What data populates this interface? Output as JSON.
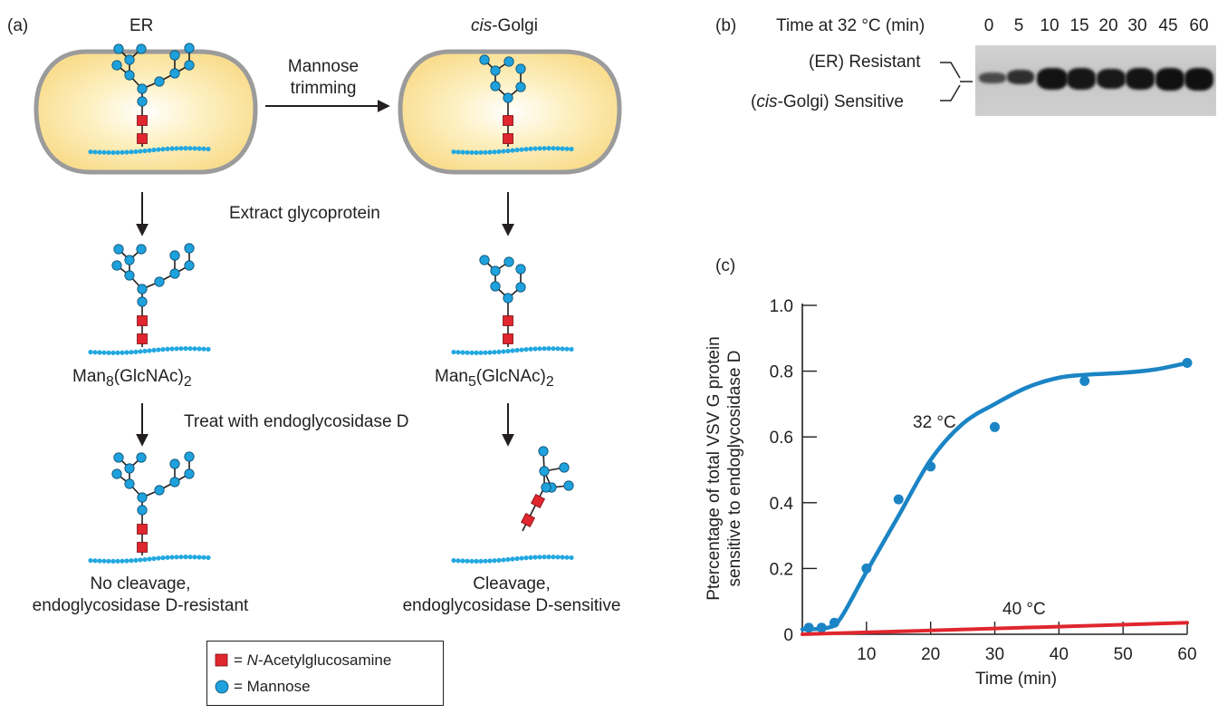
{
  "panel_a": {
    "letter": "(a)",
    "er_label": "ER",
    "golgi_label_italic": "cis",
    "golgi_label_rest": "-Golgi",
    "trim_line1": "Mannose",
    "trim_line2": "trimming",
    "extract_label": "Extract glycoprotein",
    "man8_prefix": "Man",
    "man8_sub": "8",
    "man8_mid": "(GlcNAc)",
    "man8_sub2": "2",
    "man5_prefix": "Man",
    "man5_sub": "5",
    "man5_mid": "(GlcNAc)",
    "man5_sub2": "2",
    "treat_label": "Treat with endoglycosidase D",
    "no_cleavage_line1": "No cleavage,",
    "no_cleavage_line2": "endoglycosidase D-resistant",
    "cleavage_line1": "Cleavage,",
    "cleavage_line2": "endoglycosidase D-sensitive",
    "legend": {
      "glcnac_eq": "= ",
      "glcnac_italic": "N",
      "glcnac_rest": "-Acetylglucosamine",
      "mannose": "= Mannose"
    },
    "colors": {
      "glcnac": "#e0262e",
      "mannose": "#1ea1dc",
      "membrane": "#22a8e0",
      "cell_fill": "#fbe49b",
      "cell_border": "#999999"
    }
  },
  "panel_b": {
    "letter": "(b)",
    "time_header": "Time at 32 °C (min)",
    "lanes": [
      "0",
      "5",
      "10",
      "15",
      "20",
      "30",
      "45",
      "60"
    ],
    "resistant_label": "(ER) Resistant",
    "sensitive_italic": "cis",
    "sensitive_prefix": "(",
    "sensitive_rest": "-Golgi) Sensitive"
  },
  "panel_c": {
    "letter": "(c)",
    "ylabel_line1": "Ptercentage of total VSV G protein",
    "ylabel_line2": "sensitive to endoglycosidase D",
    "xlabel": "Time (min)",
    "label_32": "32 °C",
    "label_40": "40 °C"
  },
  "chart_data": {
    "type": "line",
    "title": "",
    "xlabel": "Time (min)",
    "ylabel": "Ptercentage of total VSV G protein sensitive to endoglycosidase D",
    "xlim": [
      0,
      60
    ],
    "ylim": [
      0,
      1.0
    ],
    "x_ticks": [
      "10",
      "20",
      "30",
      "40",
      "50",
      "60"
    ],
    "y_ticks": [
      "0",
      "0.2",
      "0.4",
      "0.6",
      "0.8",
      "1.0"
    ],
    "grid": false,
    "series": [
      {
        "name": "32 °C",
        "color": "#1b84c4",
        "points": [
          [
            1,
            0.02
          ],
          [
            3,
            0.02
          ],
          [
            5,
            0.035
          ],
          [
            10,
            0.2
          ],
          [
            15,
            0.41
          ],
          [
            20,
            0.51
          ],
          [
            30,
            0.63
          ],
          [
            44,
            0.77
          ],
          [
            60,
            0.825
          ]
        ],
        "curve": [
          [
            0,
            0.015
          ],
          [
            4,
            0.02
          ],
          [
            6,
            0.05
          ],
          [
            10,
            0.19
          ],
          [
            15,
            0.36
          ],
          [
            20,
            0.53
          ],
          [
            25,
            0.64
          ],
          [
            30,
            0.7
          ],
          [
            35,
            0.75
          ],
          [
            40,
            0.78
          ],
          [
            45,
            0.79
          ],
          [
            50,
            0.795
          ],
          [
            55,
            0.805
          ],
          [
            60,
            0.825
          ]
        ]
      },
      {
        "name": "40 °C",
        "color": "#e0262e",
        "points": [],
        "curve": [
          [
            0,
            0.0
          ],
          [
            60,
            0.035
          ]
        ]
      }
    ]
  }
}
